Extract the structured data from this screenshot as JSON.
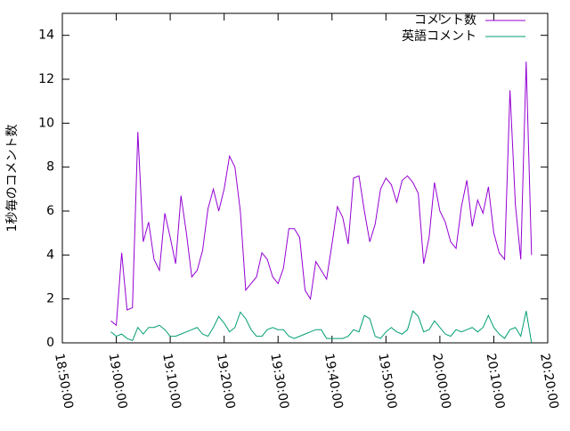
{
  "chart_data": {
    "type": "line",
    "y_label": "1秒毎のコメント数",
    "x": [
      "18:59:00",
      "19:00:00",
      "19:01:00",
      "19:02:00",
      "19:03:00",
      "19:04:00",
      "19:05:00",
      "19:06:00",
      "19:07:00",
      "19:08:00",
      "19:09:00",
      "19:10:00",
      "19:11:00",
      "19:12:00",
      "19:13:00",
      "19:14:00",
      "19:15:00",
      "19:16:00",
      "19:17:00",
      "19:18:00",
      "19:19:00",
      "19:20:00",
      "19:21:00",
      "19:22:00",
      "19:23:00",
      "19:24:00",
      "19:25:00",
      "19:26:00",
      "19:27:00",
      "19:28:00",
      "19:29:00",
      "19:30:00",
      "19:31:00",
      "19:32:00",
      "19:33:00",
      "19:34:00",
      "19:35:00",
      "19:36:00",
      "19:37:00",
      "19:38:00",
      "19:39:00",
      "19:40:00",
      "19:41:00",
      "19:42:00",
      "19:43:00",
      "19:44:00",
      "19:45:00",
      "19:46:00",
      "19:47:00",
      "19:48:00",
      "19:49:00",
      "19:50:00",
      "19:51:00",
      "19:52:00",
      "19:53:00",
      "19:54:00",
      "19:55:00",
      "19:56:00",
      "19:57:00",
      "19:58:00",
      "19:59:00",
      "20:00:00",
      "20:01:00",
      "20:02:00",
      "20:03:00",
      "20:04:00",
      "20:05:00",
      "20:06:00",
      "20:07:00",
      "20:08:00",
      "20:09:00",
      "20:10:00",
      "20:11:00",
      "20:12:00",
      "20:13:00",
      "20:14:00",
      "20:15:00",
      "20:16:00",
      "20:17:00"
    ],
    "series": [
      {
        "name": "コメント数",
        "color": "#9400d3",
        "values": [
          1.0,
          0.8,
          4.1,
          1.5,
          1.6,
          9.6,
          4.6,
          5.5,
          3.8,
          3.3,
          5.9,
          4.8,
          3.6,
          6.7,
          5.0,
          3.0,
          3.3,
          4.2,
          6.1,
          7.0,
          6.0,
          7.0,
          8.5,
          8.0,
          6.0,
          2.4,
          2.7,
          3.0,
          4.1,
          3.8,
          3.0,
          2.7,
          3.4,
          5.2,
          5.2,
          4.8,
          2.4,
          2.0,
          3.7,
          3.3,
          2.9,
          4.5,
          6.2,
          5.7,
          4.5,
          7.5,
          7.6,
          6.0,
          4.6,
          5.4,
          7.0,
          7.5,
          7.2,
          6.4,
          7.4,
          7.6,
          7.3,
          6.8,
          3.6,
          4.8,
          7.3,
          6.0,
          5.5,
          4.6,
          4.3,
          6.2,
          7.4,
          5.3,
          6.5,
          5.9,
          7.1,
          5.0,
          4.1,
          3.8,
          11.5,
          6.3,
          3.8,
          12.8,
          4.0
        ]
      },
      {
        "name": "英語コメント",
        "color": "#009e73",
        "values": [
          0.5,
          0.3,
          0.4,
          0.2,
          0.1,
          0.7,
          0.4,
          0.7,
          0.7,
          0.8,
          0.6,
          0.3,
          0.3,
          0.4,
          0.5,
          0.6,
          0.7,
          0.4,
          0.3,
          0.7,
          1.2,
          0.9,
          0.5,
          0.7,
          1.4,
          1.1,
          0.6,
          0.3,
          0.3,
          0.6,
          0.7,
          0.6,
          0.6,
          0.3,
          0.2,
          0.3,
          0.4,
          0.5,
          0.6,
          0.6,
          0.2,
          0.2,
          0.2,
          0.2,
          0.3,
          0.6,
          0.5,
          1.25,
          1.1,
          0.3,
          0.2,
          0.5,
          0.7,
          0.5,
          0.4,
          0.6,
          1.45,
          1.2,
          0.5,
          0.6,
          1.0,
          0.7,
          0.4,
          0.3,
          0.6,
          0.5,
          0.6,
          0.7,
          0.5,
          0.7,
          1.25,
          0.7,
          0.4,
          0.2,
          0.6,
          0.7,
          0.3,
          1.45,
          0.0
        ]
      }
    ],
    "xlim": [
      "18:50:00",
      "20:20:00"
    ],
    "xticks": [
      "18:50:00",
      "19:00:00",
      "19:10:00",
      "19:20:00",
      "19:30:00",
      "19:40:00",
      "19:50:00",
      "20:00:00",
      "20:10:00",
      "20:20:00"
    ],
    "ylim": [
      0,
      15
    ],
    "yticks": [
      0,
      2,
      4,
      6,
      8,
      10,
      12,
      14
    ],
    "legend": "top-right"
  }
}
